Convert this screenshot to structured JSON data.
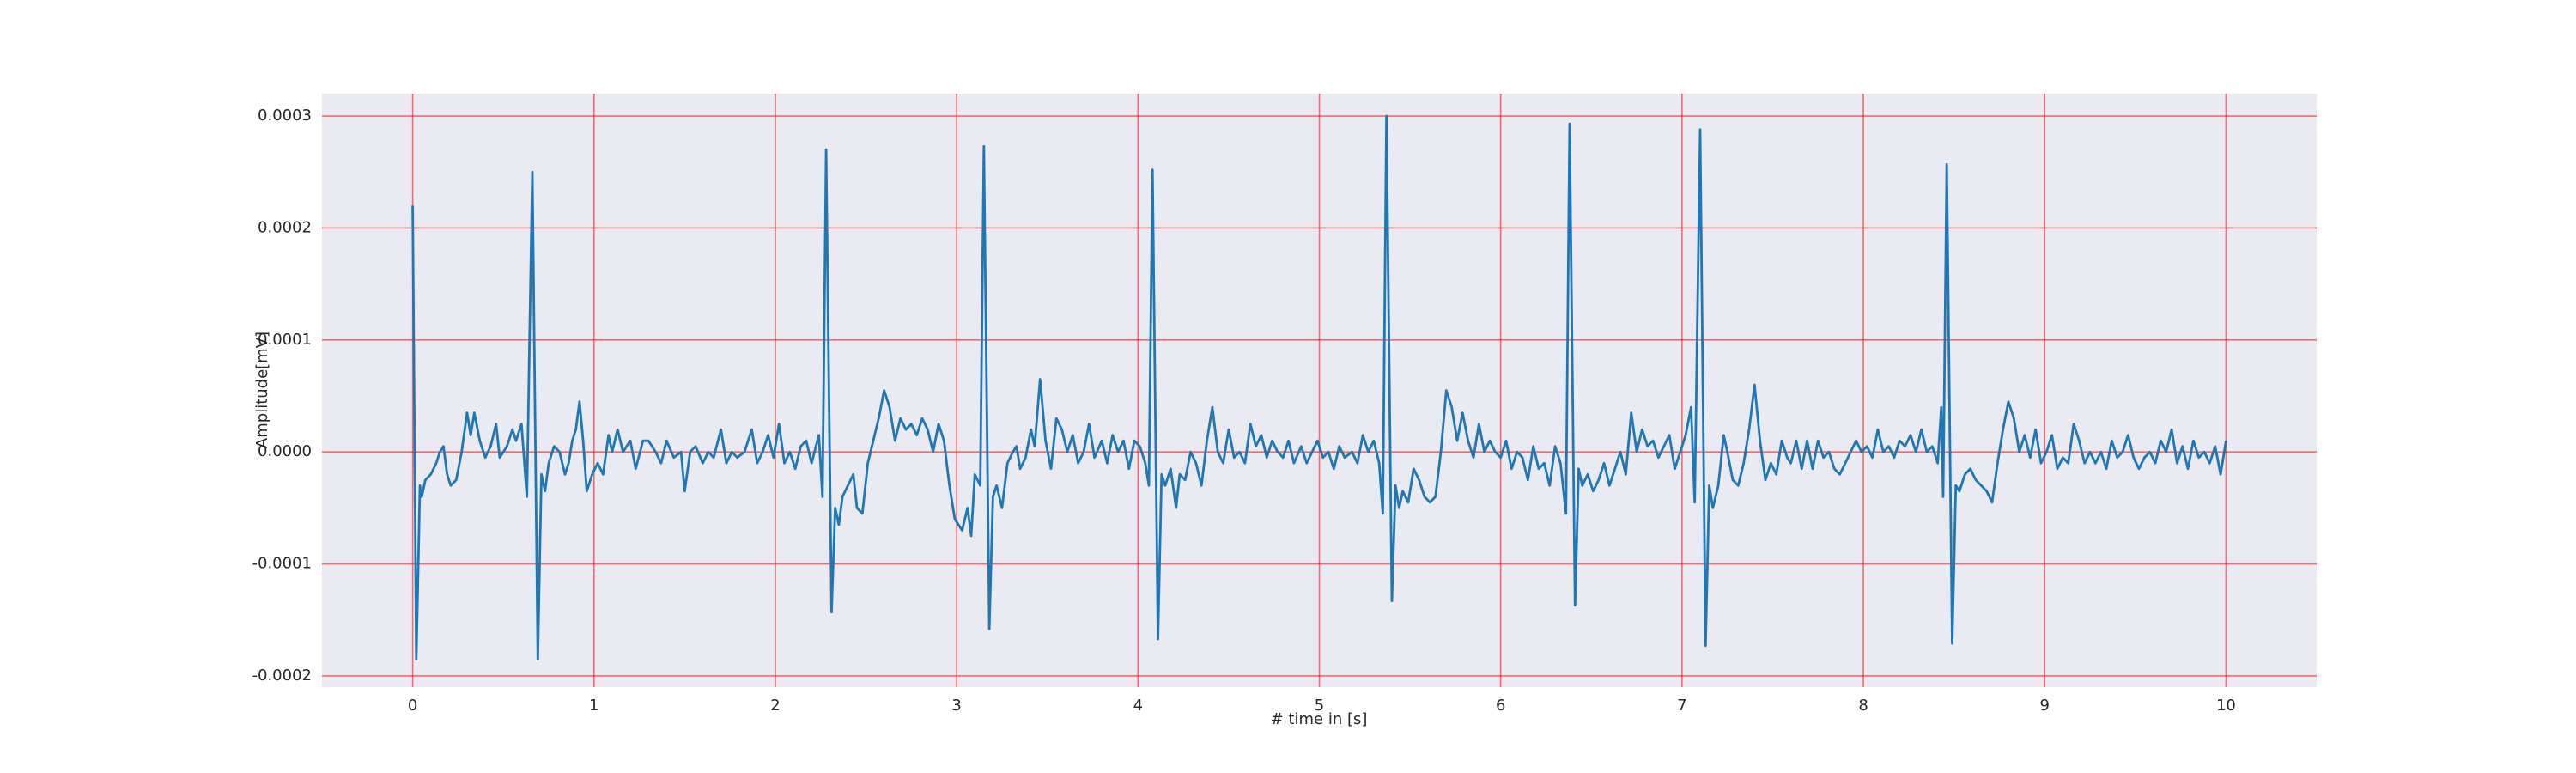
{
  "chart_data": {
    "type": "line",
    "xlabel": "# time in [s]",
    "ylabel": "Amplitude[mV]",
    "xlim": [
      -0.5,
      10.5
    ],
    "ylim": [
      -0.00021,
      0.00032
    ],
    "xticks": [
      0,
      1,
      2,
      3,
      4,
      5,
      6,
      7,
      8,
      9,
      10
    ],
    "yticks": [
      -0.0002,
      -0.0001,
      {
        "value": 0,
        "label": "0.0000"
      },
      0.0001,
      0.0002,
      0.0003
    ],
    "grid": true,
    "grid_color": "#ff0000",
    "background": "#eaeaf2",
    "series": [
      {
        "color": "#1f77b4",
        "x": [
          0,
          0.02,
          0.04,
          0.05,
          0.07,
          0.1,
          0.13,
          0.15,
          0.17,
          0.19,
          0.21,
          0.24,
          0.27,
          0.3,
          0.32,
          0.34,
          0.37,
          0.4,
          0.43,
          0.46,
          0.48,
          0.52,
          0.55,
          0.57,
          0.6,
          0.63,
          0.66,
          0.69,
          0.71,
          0.73,
          0.75,
          0.78,
          0.81,
          0.84,
          0.86,
          0.88,
          0.9,
          0.92,
          0.94,
          0.96,
          0.99,
          1.02,
          1.05,
          1.08,
          1.1,
          1.13,
          1.16,
          1.2,
          1.23,
          1.27,
          1.3,
          1.34,
          1.37,
          1.4,
          1.44,
          1.48,
          1.5,
          1.53,
          1.56,
          1.6,
          1.63,
          1.66,
          1.7,
          1.73,
          1.76,
          1.79,
          1.83,
          1.87,
          1.9,
          1.93,
          1.96,
          1.99,
          2.02,
          2.05,
          2.08,
          2.11,
          2.14,
          2.17,
          2.2,
          2.24,
          2.26,
          2.28,
          2.31,
          2.33,
          2.35,
          2.37,
          2.4,
          2.43,
          2.45,
          2.48,
          2.51,
          2.54,
          2.57,
          2.6,
          2.63,
          2.66,
          2.69,
          2.72,
          2.75,
          2.78,
          2.81,
          2.84,
          2.87,
          2.9,
          2.93,
          2.96,
          2.99,
          3.03,
          3.06,
          3.08,
          3.1,
          3.13,
          3.15,
          3.18,
          3.2,
          3.22,
          3.25,
          3.28,
          3.31,
          3.33,
          3.35,
          3.38,
          3.41,
          3.43,
          3.46,
          3.49,
          3.52,
          3.55,
          3.58,
          3.61,
          3.64,
          3.67,
          3.7,
          3.73,
          3.76,
          3.8,
          3.83,
          3.86,
          3.89,
          3.92,
          3.95,
          3.98,
          4.01,
          4.04,
          4.06,
          4.08,
          4.11,
          4.13,
          4.15,
          4.18,
          4.21,
          4.23,
          4.26,
          4.29,
          4.32,
          4.35,
          4.38,
          4.41,
          4.44,
          4.47,
          4.5,
          4.53,
          4.56,
          4.59,
          4.62,
          4.65,
          4.68,
          4.71,
          4.74,
          4.77,
          4.8,
          4.83,
          4.86,
          4.9,
          4.93,
          4.96,
          4.99,
          5.02,
          5.05,
          5.08,
          5.11,
          5.14,
          5.18,
          5.21,
          5.24,
          5.27,
          5.3,
          5.33,
          5.35,
          5.37,
          5.4,
          5.42,
          5.44,
          5.46,
          5.49,
          5.52,
          5.55,
          5.58,
          5.61,
          5.64,
          5.67,
          5.7,
          5.73,
          5.76,
          5.79,
          5.82,
          5.85,
          5.88,
          5.91,
          5.94,
          5.97,
          6.0,
          6.03,
          6.06,
          6.09,
          6.12,
          6.15,
          6.18,
          6.21,
          6.24,
          6.27,
          6.3,
          6.33,
          6.36,
          6.38,
          6.41,
          6.43,
          6.45,
          6.48,
          6.51,
          6.54,
          6.57,
          6.6,
          6.63,
          6.66,
          6.69,
          6.72,
          6.75,
          6.78,
          6.81,
          6.84,
          6.87,
          6.9,
          6.93,
          6.96,
          6.99,
          7.02,
          7.05,
          7.07,
          7.1,
          7.13,
          7.15,
          7.17,
          7.2,
          7.23,
          7.25,
          7.28,
          7.31,
          7.34,
          7.37,
          7.4,
          7.43,
          7.46,
          7.49,
          7.52,
          7.55,
          7.58,
          7.6,
          7.63,
          7.66,
          7.69,
          7.72,
          7.75,
          7.78,
          7.81,
          7.84,
          7.87,
          7.9,
          7.93,
          7.96,
          7.99,
          8.02,
          8.05,
          8.08,
          8.11,
          8.14,
          8.17,
          8.2,
          8.23,
          8.26,
          8.29,
          8.32,
          8.35,
          8.38,
          8.41,
          8.43,
          8.44,
          8.46,
          8.49,
          8.51,
          8.53,
          8.56,
          8.59,
          8.62,
          8.65,
          8.68,
          8.71,
          8.74,
          8.77,
          8.8,
          8.83,
          8.86,
          8.89,
          8.92,
          8.95,
          8.98,
          9.01,
          9.04,
          9.07,
          9.1,
          9.13,
          9.16,
          9.19,
          9.22,
          9.25,
          9.28,
          9.31,
          9.34,
          9.37,
          9.4,
          9.43,
          9.46,
          9.49,
          9.52,
          9.55,
          9.58,
          9.61,
          9.64,
          9.67,
          9.7,
          9.73,
          9.76,
          9.79,
          9.82,
          9.85,
          9.88,
          9.91,
          9.94,
          9.97,
          10.0
        ],
        "values": [
          0.00022,
          -0.000185,
          -3e-05,
          -4e-05,
          -2.5e-05,
          -2e-05,
          -1e-05,
          0,
          5e-06,
          -2e-05,
          -3e-05,
          -2.5e-05,
          0,
          3.5e-05,
          1.5e-05,
          3.5e-05,
          1e-05,
          -5e-06,
          5e-06,
          2.5e-05,
          -5e-06,
          5e-06,
          2e-05,
          1e-05,
          2.5e-05,
          -4e-05,
          0.00025,
          -0.000185,
          -2e-05,
          -3.5e-05,
          -1e-05,
          5e-06,
          0,
          -2e-05,
          -1e-05,
          1e-05,
          2e-05,
          4.5e-05,
          1e-05,
          -3.5e-05,
          -2e-05,
          -1e-05,
          -2e-05,
          1.5e-05,
          0,
          2e-05,
          0,
          1e-05,
          -1.5e-05,
          1e-05,
          1e-05,
          0,
          -1e-05,
          1e-05,
          -5e-06,
          0,
          -3.5e-05,
          0,
          5e-06,
          -1e-05,
          0,
          -5e-06,
          2e-05,
          -1e-05,
          0,
          -5e-06,
          0,
          2e-05,
          -1e-05,
          0,
          1.5e-05,
          -5e-06,
          2.5e-05,
          -1e-05,
          0,
          -1.5e-05,
          5e-06,
          1e-05,
          -1e-05,
          1.5e-05,
          -4e-05,
          0.00027,
          -0.000143,
          -5e-05,
          -6.5e-05,
          -4e-05,
          -3e-05,
          -2e-05,
          -5e-05,
          -5.5e-05,
          -1e-05,
          1e-05,
          3e-05,
          5.5e-05,
          4e-05,
          1e-05,
          3e-05,
          2e-05,
          2.5e-05,
          1.5e-05,
          3e-05,
          2e-05,
          0,
          2.5e-05,
          1e-05,
          -3e-05,
          -6e-05,
          -7e-05,
          -5e-05,
          -7.5e-05,
          -2e-05,
          -3e-05,
          0.000273,
          -0.000158,
          -4e-05,
          -3e-05,
          -5e-05,
          -1e-05,
          0,
          5e-06,
          -1.5e-05,
          -5e-06,
          2e-05,
          5e-06,
          6.5e-05,
          1e-05,
          -1.5e-05,
          3e-05,
          2e-05,
          0,
          1.5e-05,
          -1e-05,
          0,
          2.5e-05,
          -5e-06,
          1e-05,
          -1e-05,
          1.5e-05,
          0,
          1e-05,
          -1.5e-05,
          1e-05,
          5e-06,
          -1e-05,
          -3e-05,
          0.000252,
          -0.000167,
          -2e-05,
          -3e-05,
          -1.5e-05,
          -5e-05,
          -2e-05,
          -2.5e-05,
          0,
          -1e-05,
          -3e-05,
          1e-05,
          4e-05,
          0,
          -1e-05,
          2e-05,
          -5e-06,
          0,
          -1e-05,
          2.5e-05,
          5e-06,
          1.5e-05,
          -5e-06,
          1e-05,
          0,
          -5e-06,
          1e-05,
          -1e-05,
          5e-06,
          -1e-05,
          0,
          1e-05,
          -5e-06,
          0,
          -1.5e-05,
          5e-06,
          -5e-06,
          0,
          -1e-05,
          1.5e-05,
          0,
          1e-05,
          -1e-05,
          -5.5e-05,
          0.0003,
          -0.000133,
          -3e-05,
          -5e-05,
          -3.5e-05,
          -4.5e-05,
          -1.5e-05,
          -2.5e-05,
          -4e-05,
          -4.5e-05,
          -4e-05,
          0,
          5.5e-05,
          4e-05,
          1e-05,
          3.5e-05,
          1e-05,
          -5e-06,
          2.5e-05,
          0,
          1e-05,
          0,
          -5e-06,
          1e-05,
          -1.5e-05,
          0,
          -5e-06,
          -2.5e-05,
          5e-06,
          -1.5e-05,
          -1e-05,
          -3e-05,
          5e-06,
          -1e-05,
          -5.5e-05,
          0.000293,
          -0.000137,
          -1.5e-05,
          -3e-05,
          -2e-05,
          -3.5e-05,
          -2.5e-05,
          -1e-05,
          -3e-05,
          -1.5e-05,
          0,
          -2e-05,
          3.5e-05,
          0,
          2e-05,
          5e-06,
          1e-05,
          -5e-06,
          5e-06,
          1.5e-05,
          -1.5e-05,
          0,
          1.5e-05,
          4e-05,
          -4.5e-05,
          0.000288,
          -0.000173,
          -3e-05,
          -5e-05,
          -3e-05,
          1.5e-05,
          0,
          -2.5e-05,
          -3e-05,
          -1e-05,
          2e-05,
          6e-05,
          1e-05,
          -2.5e-05,
          -1e-05,
          -2e-05,
          1e-05,
          -5e-06,
          -1e-05,
          1e-05,
          -1.5e-05,
          1e-05,
          -1.5e-05,
          1e-05,
          -5e-06,
          0,
          -1.5e-05,
          -2e-05,
          -1e-05,
          0,
          1e-05,
          0,
          5e-06,
          -5e-06,
          2e-05,
          0,
          5e-06,
          -5e-06,
          1e-05,
          5e-06,
          1.5e-05,
          0,
          2e-05,
          0,
          5e-06,
          -1e-05,
          4e-05,
          -4e-05,
          0.000257,
          -0.000171,
          -3e-05,
          -3.5e-05,
          -2e-05,
          -1.5e-05,
          -2.5e-05,
          -3e-05,
          -3.5e-05,
          -4.5e-05,
          -1e-05,
          2e-05,
          4.5e-05,
          3e-05,
          0,
          1.5e-05,
          -5e-06,
          2e-05,
          -1e-05,
          0,
          1.5e-05,
          -1.5e-05,
          -5e-06,
          -1e-05,
          2.5e-05,
          1e-05,
          -1e-05,
          0,
          -1e-05,
          0,
          -1.5e-05,
          1e-05,
          -5e-06,
          0,
          1.5e-05,
          -5e-06,
          -1.5e-05,
          -5e-06,
          0,
          -1e-05,
          1e-05,
          0,
          2e-05,
          -1e-05,
          5e-06,
          -1.5e-05,
          1e-05,
          -5e-06,
          0,
          -1e-05,
          5e-06,
          -2e-05,
          1e-05
        ]
      }
    ]
  }
}
